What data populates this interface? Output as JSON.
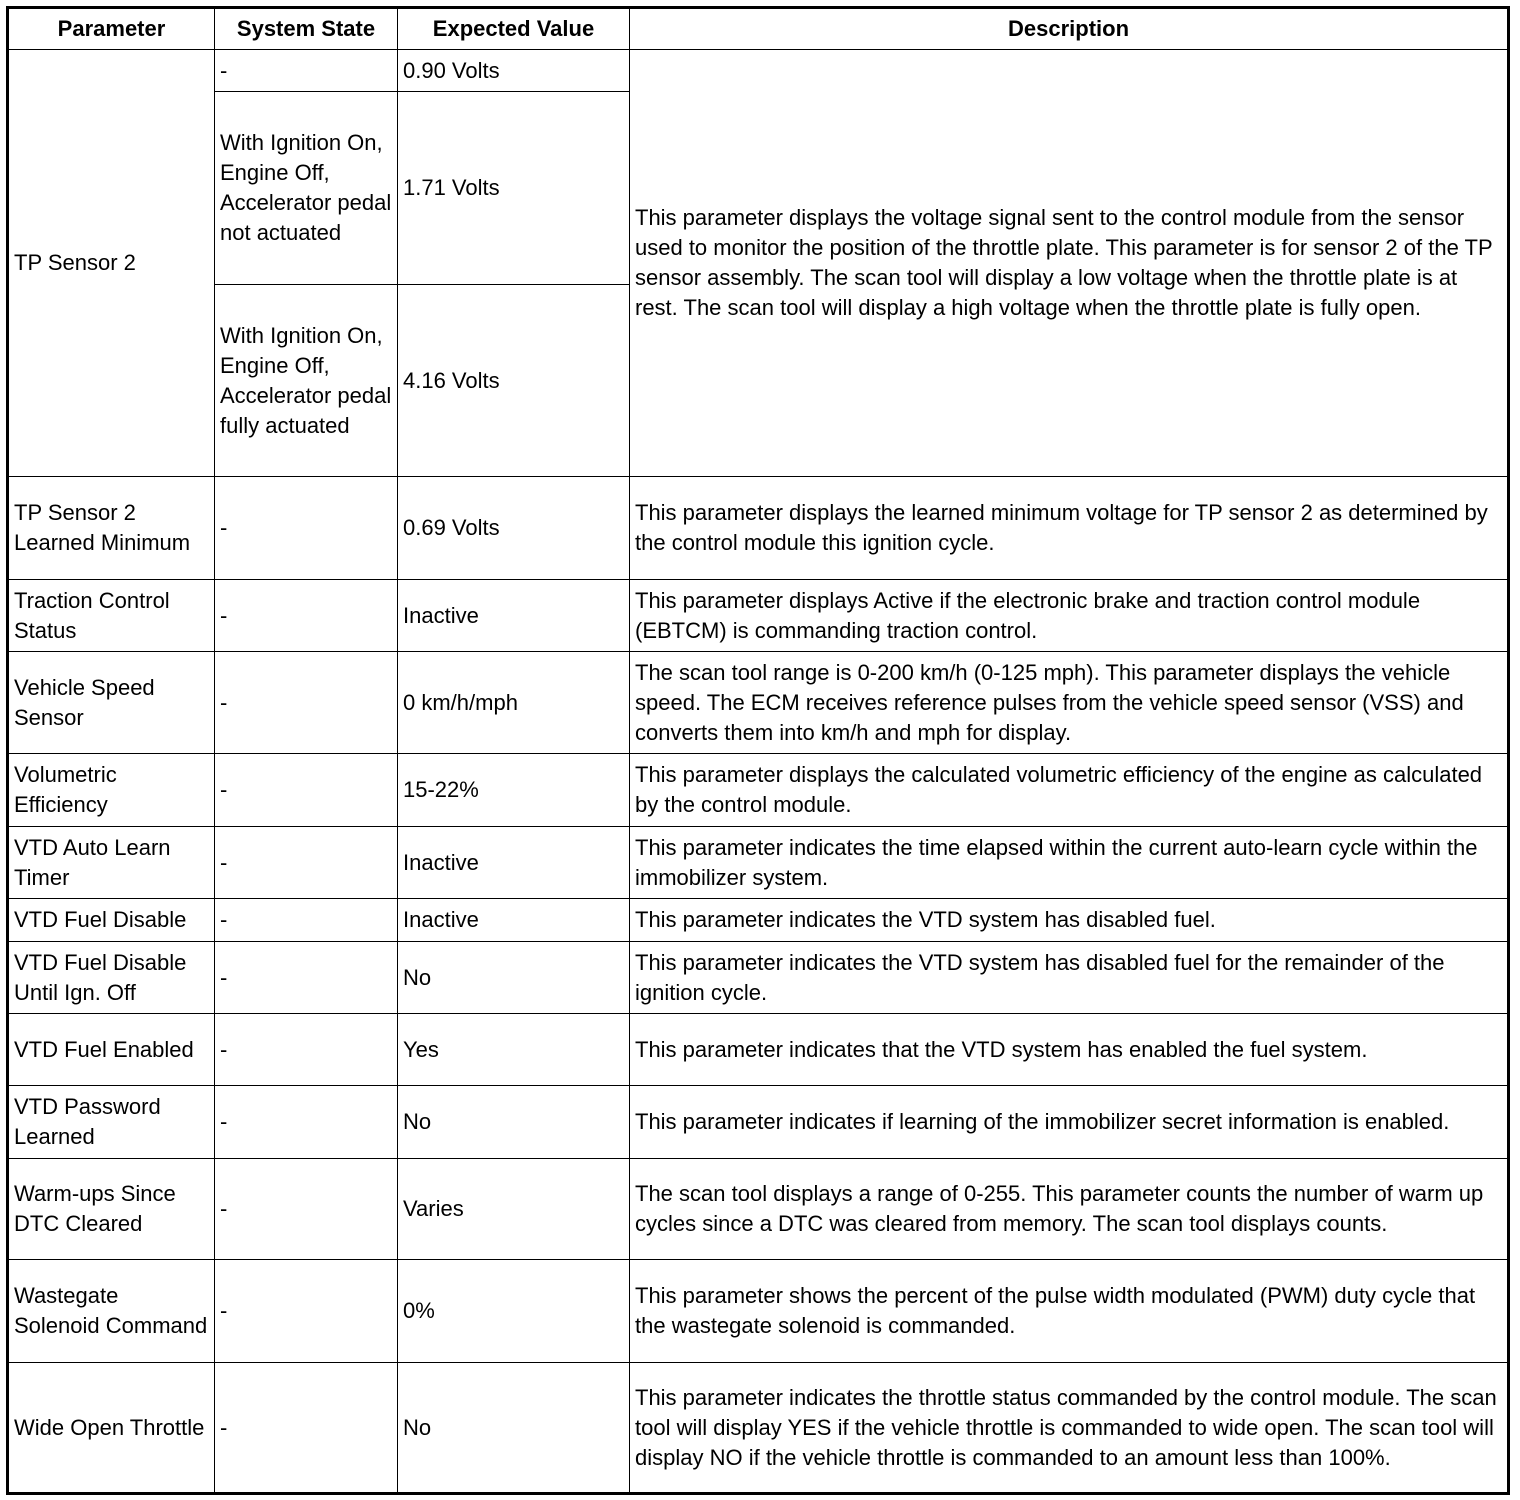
{
  "headers": [
    "Parameter",
    "System State",
    "Expected Value",
    "Description"
  ],
  "tp_sensor_2": {
    "parameter": "TP Sensor 2",
    "states": [
      {
        "state": "-",
        "value": "0.90 Volts"
      },
      {
        "state": "With Ignition On, Engine Off, Accelerator pedal not actuated",
        "value": "1.71 Volts"
      },
      {
        "state": "With Ignition On, Engine Off, Accelerator pedal fully actuated",
        "value": "4.16 Volts"
      }
    ],
    "description": "This parameter displays the voltage signal sent to the control module from the sensor used to monitor the position of the throttle plate. This parameter is for sensor 2 of the TP sensor assembly. The scan tool will display a low voltage when the throttle plate is at rest. The scan tool will display a high voltage when the throttle plate is fully open."
  },
  "rows": [
    {
      "parameter": "TP Sensor 2 Learned Minimum",
      "state": "-",
      "value": "0.69 Volts",
      "description": "This parameter displays the learned minimum voltage for TP sensor 2 as determined by the control module this ignition cycle."
    },
    {
      "parameter": "Traction Control Status",
      "state": "-",
      "value": "Inactive",
      "description": "This parameter displays Active if the electronic brake and traction control module (EBTCM) is commanding traction control."
    },
    {
      "parameter": "Vehicle Speed Sensor",
      "state": "-",
      "value": "0 km/h/mph",
      "description": "The scan tool range is 0-200 km/h (0-125 mph). This parameter displays the vehicle speed. The ECM receives reference pulses from the vehicle speed sensor (VSS) and converts them into km/h and mph for display."
    },
    {
      "parameter": "Volumetric Efficiency",
      "state": "-",
      "value": "15-22%",
      "description": "This parameter displays the calculated volumetric efficiency of the engine as calculated by the control module."
    },
    {
      "parameter": "VTD Auto Learn Timer",
      "state": "-",
      "value": "Inactive",
      "description": "This parameter indicates the time elapsed within the current auto-learn cycle within the immobilizer system."
    },
    {
      "parameter": "VTD Fuel Disable",
      "state": "-",
      "value": "Inactive",
      "description": "This parameter indicates the VTD system has disabled fuel."
    },
    {
      "parameter": "VTD Fuel Disable Until Ign. Off",
      "state": "-",
      "value": "No",
      "description": "This parameter indicates the VTD system has disabled fuel for the remainder of the ignition cycle."
    },
    {
      "parameter": "VTD Fuel Enabled",
      "state": "-",
      "value": "Yes",
      "description": "This parameter indicates that the VTD system has enabled the fuel system."
    },
    {
      "parameter": "VTD Password Learned",
      "state": "-",
      "value": "No",
      "description": "This parameter indicates if learning of the immobilizer secret information is enabled."
    },
    {
      "parameter": "Warm-ups Since DTC Cleared",
      "state": "-",
      "value": "Varies",
      "description": "The scan tool displays a range of 0-255. This parameter counts the number of warm up cycles since a DTC was cleared from memory. The scan tool displays counts."
    },
    {
      "parameter": "Wastegate Solenoid Command",
      "state": "-",
      "value": "0%",
      "description": "This parameter shows the percent of the pulse width modulated (PWM) duty cycle that the wastegate solenoid is commanded."
    },
    {
      "parameter": "Wide Open Throttle",
      "state": "-",
      "value": "No",
      "description": "This parameter indicates the throttle status commanded by the control module. The scan tool will display YES if the vehicle throttle is commanded to wide open. The scan tool will display NO if the vehicle throttle is commanded to an amount less than 100%."
    }
  ]
}
